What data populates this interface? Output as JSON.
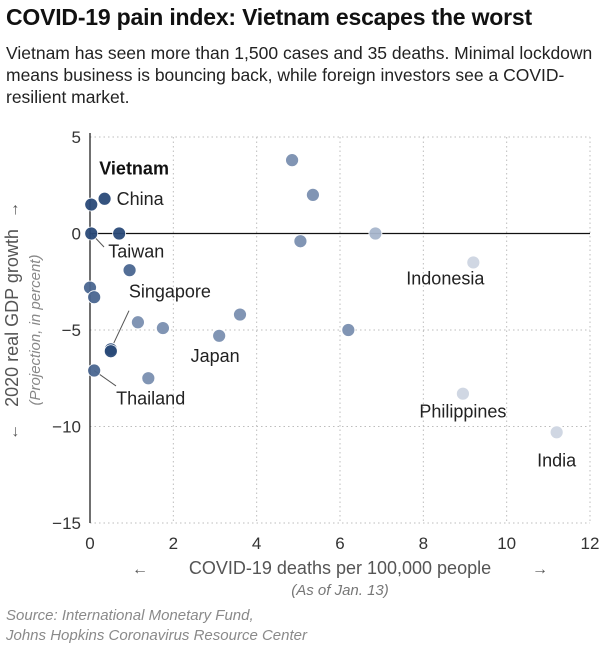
{
  "header": {
    "title": "COVID-19 pain index: Vietnam escapes the worst",
    "subtitle": "Vietnam has seen more than 1,500 cases and 35 deaths. Minimal lockdown means business is bouncing back, while foreign investors see a COVID-resilient market."
  },
  "source": {
    "line1": "Source: International Monetary Fund,",
    "line2": "Johns Hopkins Coronavirus Resource Center"
  },
  "chart_data": {
    "type": "scatter",
    "title": "COVID-19 pain index: Vietnam escapes the worst",
    "xlabel": "COVID-19 deaths per 100,000 people",
    "xlabel_note": "(As of Jan. 13)",
    "ylabel": "2020 real GDP growth",
    "ylabel_note": "(Projection, in percent)",
    "xlim": [
      0,
      12
    ],
    "ylim": [
      -15,
      5
    ],
    "xticks": [
      "0",
      "2",
      "4",
      "6",
      "8",
      "10",
      "12"
    ],
    "yticks": [
      "5",
      "0",
      "−5",
      "−10",
      "−15"
    ],
    "xtick_values": [
      0,
      2,
      4,
      6,
      8,
      10,
      12
    ],
    "ytick_values": [
      5,
      0,
      -5,
      -10,
      -15
    ],
    "grid": true,
    "point_colors": {
      "darkest": "#2a4a78",
      "dark": "#4a6690",
      "medium": "#7a8fb0",
      "light": "#a8b6cc",
      "lightest": "#cdd5e2"
    },
    "points": [
      {
        "x": 0.03,
        "y": 1.5,
        "label": "Vietnam",
        "shade": "darkest"
      },
      {
        "x": 0.35,
        "y": 1.8,
        "label": "China",
        "shade": "darkest"
      },
      {
        "x": 0.03,
        "y": 0.0,
        "label": "Taiwan",
        "shade": "darkest"
      },
      {
        "x": 0.7,
        "y": 0.0,
        "label": "",
        "shade": "darkest"
      },
      {
        "x": 0.95,
        "y": -1.9,
        "label": "",
        "shade": "dark"
      },
      {
        "x": 0.0,
        "y": -2.8,
        "label": "",
        "shade": "dark"
      },
      {
        "x": 0.1,
        "y": -3.3,
        "label": "",
        "shade": "dark"
      },
      {
        "x": 0.5,
        "y": -6.0,
        "label": "Singapore",
        "shade": "darkest"
      },
      {
        "x": 0.5,
        "y": -6.1,
        "label": "",
        "shade": "darkest"
      },
      {
        "x": 0.1,
        "y": -7.1,
        "label": "Thailand",
        "shade": "dark"
      },
      {
        "x": 1.15,
        "y": -4.6,
        "label": "",
        "shade": "medium"
      },
      {
        "x": 1.75,
        "y": -4.9,
        "label": "",
        "shade": "medium"
      },
      {
        "x": 1.4,
        "y": -7.5,
        "label": "",
        "shade": "medium"
      },
      {
        "x": 3.1,
        "y": -5.3,
        "label": "Japan",
        "shade": "medium"
      },
      {
        "x": 3.6,
        "y": -4.2,
        "label": "",
        "shade": "medium"
      },
      {
        "x": 4.85,
        "y": 3.8,
        "label": "",
        "shade": "medium"
      },
      {
        "x": 5.35,
        "y": 2.0,
        "label": "",
        "shade": "medium"
      },
      {
        "x": 5.05,
        "y": -0.4,
        "label": "",
        "shade": "medium"
      },
      {
        "x": 6.85,
        "y": 0.0,
        "label": "",
        "shade": "light"
      },
      {
        "x": 6.2,
        "y": -5.0,
        "label": "",
        "shade": "medium"
      },
      {
        "x": 9.2,
        "y": -1.5,
        "label": "Indonesia",
        "shade": "lightest"
      },
      {
        "x": 8.95,
        "y": -8.3,
        "label": "Philippines",
        "shade": "lightest"
      },
      {
        "x": 11.2,
        "y": -10.3,
        "label": "India",
        "shade": "lightest"
      }
    ]
  }
}
